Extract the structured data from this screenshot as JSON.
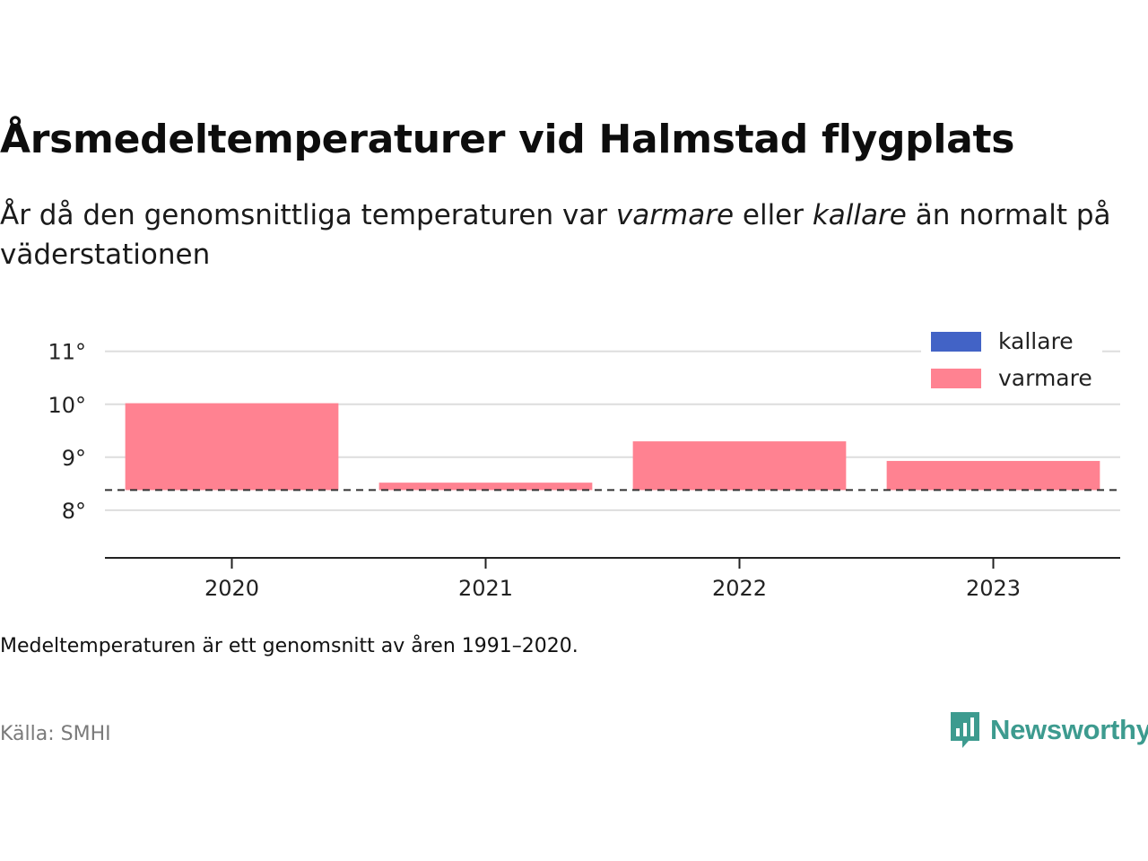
{
  "title": "Årsmedeltemperaturer vid Halmstad flygplats",
  "subtitle": {
    "part1": "År då den genomsnittliga temperaturen var ",
    "emph1": "varmare",
    "part2": " eller ",
    "emph2": "kallare",
    "part3": " än normalt på väderstationen"
  },
  "note": "Medeltemperaturen är ett genomsnitt av åren 1991–2020.",
  "source": "Källa: SMHI",
  "brand": {
    "name": "Newsworthy",
    "icon": "newsworthy-logo-icon"
  },
  "colors": {
    "varmare": "#ff8291",
    "kallare": "#4263c6",
    "grid": "#dddddd",
    "axis": "#222222"
  },
  "chart_data": {
    "type": "bar",
    "categories": [
      "2020",
      "2021",
      "2022",
      "2023"
    ],
    "baseline": 8.38,
    "values": [
      10.02,
      8.52,
      9.3,
      8.93
    ],
    "ylim": [
      7.1,
      11.3
    ],
    "yticks": [
      8,
      9,
      10,
      11
    ],
    "ytick_labels": [
      "8°",
      "9°",
      "10°",
      "11°"
    ],
    "grid": true,
    "legend": {
      "position": "top-right",
      "entries": [
        {
          "name": "kallare",
          "color": "#4263c6"
        },
        {
          "name": "varmare",
          "color": "#ff8291"
        }
      ]
    }
  }
}
